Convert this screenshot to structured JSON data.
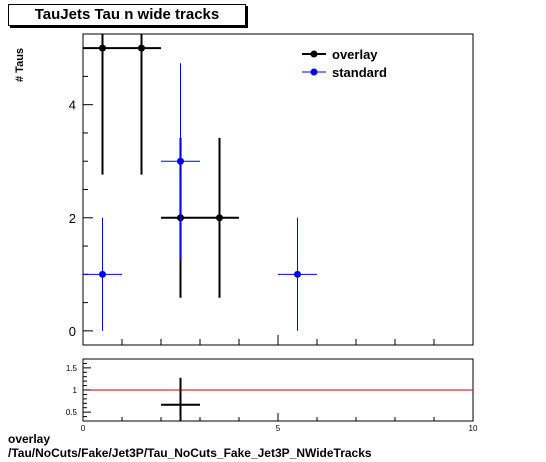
{
  "title": "TauJets Tau n wide tracks",
  "footer_line1": "overlay",
  "footer_line2": "/Tau/NoCuts/Fake/Jet3P/Tau_NoCuts_Fake_Jet3P_NWideTracks",
  "chart_data": [
    {
      "type": "scatter",
      "ylabel": "# Taus",
      "xlim": [
        0,
        10
      ],
      "ylim": [
        -0.25,
        5.25
      ],
      "x_ticks": [],
      "y_ticks": [
        0,
        2,
        4
      ],
      "legend_position": "top-right",
      "series": [
        {
          "name": "overlay",
          "color": "#000000",
          "points": [
            {
              "x": 0.5,
              "y": 5,
              "xerr": 0.5,
              "yerr": 2.236
            },
            {
              "x": 1.5,
              "y": 5,
              "xerr": 0.5,
              "yerr": 2.236
            },
            {
              "x": 2.5,
              "y": 2,
              "xerr": 0.5,
              "yerr": 1.414
            },
            {
              "x": 3.5,
              "y": 2,
              "xerr": 0.5,
              "yerr": 1.414
            }
          ]
        },
        {
          "name": "standard",
          "color": "#0000ff",
          "points": [
            {
              "x": 0.5,
              "y": 1,
              "xerr": 0.5,
              "yerr": 1.0
            },
            {
              "x": 2.5,
              "y": 3,
              "xerr": 0.5,
              "yerr": 1.732
            },
            {
              "x": 5.5,
              "y": 1,
              "xerr": 0.5,
              "yerr": 1.0
            }
          ]
        }
      ]
    },
    {
      "type": "scatter",
      "xlim": [
        0,
        10
      ],
      "ylim": [
        0.3,
        1.7
      ],
      "x_ticks": [
        0,
        5,
        10
      ],
      "y_ticks": [
        0.5,
        1,
        1.5
      ],
      "reference_line": {
        "y": 1,
        "color": "#cc0000"
      },
      "series": [
        {
          "color": "#000000",
          "points": [
            {
              "x": 2.5,
              "y": 0.667,
              "xerr": 0.5,
              "yerr": 0.609
            }
          ]
        }
      ]
    }
  ]
}
